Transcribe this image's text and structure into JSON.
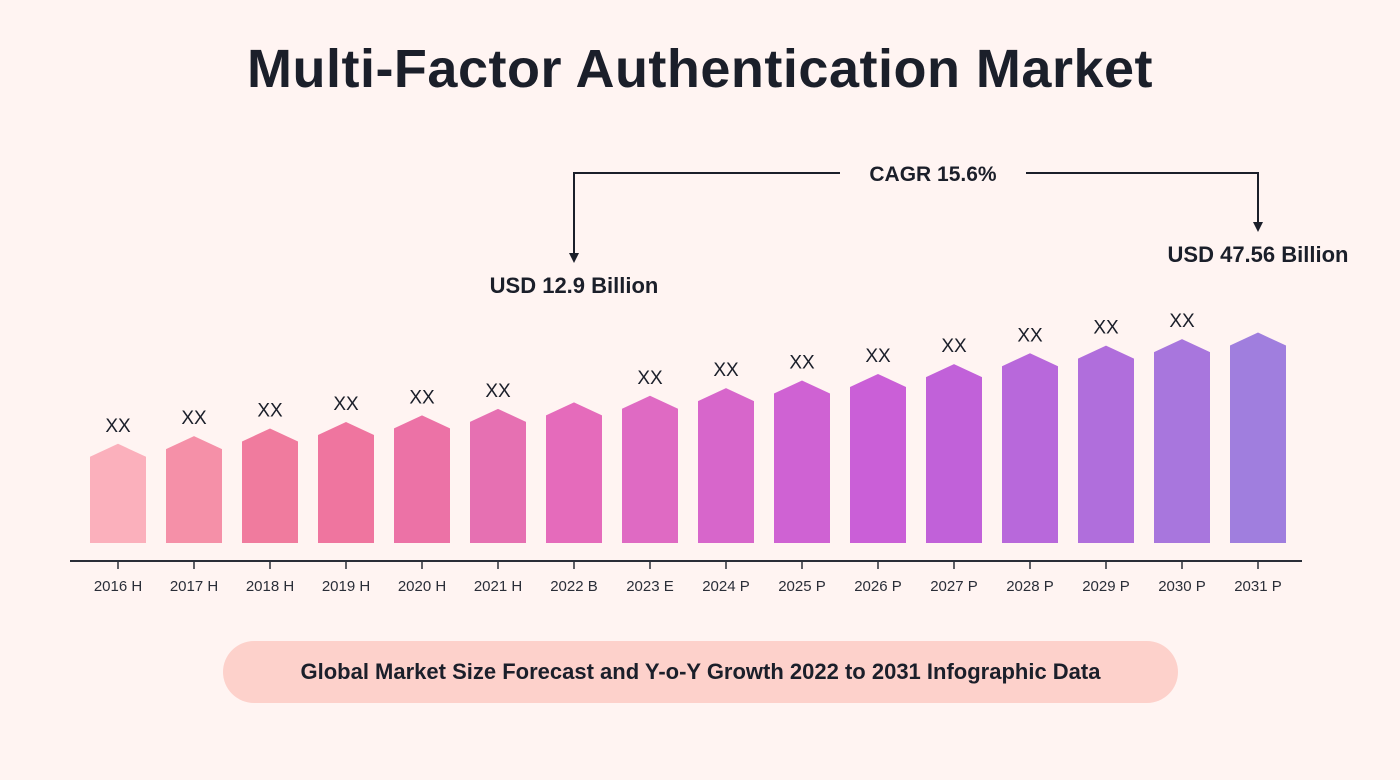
{
  "chart_data": {
    "type": "bar",
    "title": "Multi-Factor Authentication Market",
    "categories": [
      "2016 H",
      "2017 H",
      "2018 H",
      "2019 H",
      "2020 H",
      "2021 H",
      "2022 B",
      "2023 E",
      "2024 P",
      "2025 P",
      "2026 P",
      "2027 P",
      "2028 P",
      "2029 P",
      "2030 P",
      "2031 P"
    ],
    "values": [
      9.1,
      9.8,
      10.5,
      11.1,
      11.7,
      12.3,
      12.9,
      13.5,
      14.2,
      14.9,
      15.5,
      16.4,
      17.4,
      18.1,
      18.7,
      19.3
    ],
    "bar_labels": [
      "XX",
      "XX",
      "XX",
      "XX",
      "XX",
      "XX",
      "",
      "XX",
      "XX",
      "XX",
      "XX",
      "XX",
      "XX",
      "XX",
      "XX",
      ""
    ],
    "ylim": [
      0,
      21
    ],
    "value_note": "bar heights are relative; only 2022 (12.9) and 2031 (47.56) are stated in USD Billion",
    "annotations": {
      "cagr": "CAGR 15.6%",
      "start_value": "USD 12.9 Billion",
      "end_value": "USD 47.56 Billion",
      "start_index": 6,
      "end_index": 15
    },
    "colors": [
      "#fbb0bc",
      "#f590a8",
      "#f07b9e",
      "#ef759f",
      "#ec72a6",
      "#e670b2",
      "#e56bbb",
      "#df6ac3",
      "#d766cb",
      "#cf62d3",
      "#ca5fd7",
      "#c161d9",
      "#b868db",
      "#b06edc",
      "#a876dd",
      "#a07ede"
    ],
    "grid": false
  },
  "caption": "Global Market Size Forecast and Y-o-Y Growth 2022 to 2031 Infographic Data"
}
